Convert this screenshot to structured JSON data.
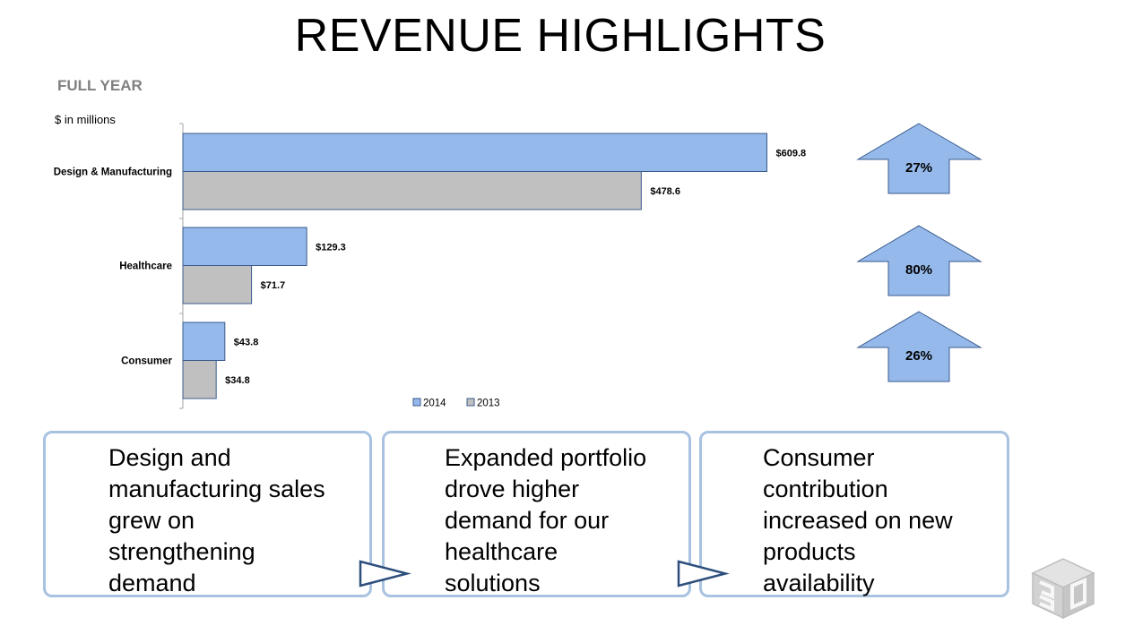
{
  "page": {
    "title": "REVENUE HIGHLIGHTS",
    "section_label": "FULL YEAR",
    "units_label": "$ in millions"
  },
  "chart_data": {
    "type": "bar",
    "orientation": "horizontal",
    "categories": [
      "Design & Manufacturing",
      "Healthcare",
      "Consumer"
    ],
    "series": [
      {
        "name": "2014",
        "values": [
          609.8,
          129.3,
          43.8
        ],
        "labels": [
          "$609.8",
          "$129.3",
          "$43.8"
        ],
        "color": "#95b9eb"
      },
      {
        "name": "2013",
        "values": [
          478.6,
          71.7,
          34.8
        ],
        "labels": [
          "$478.6",
          "$71.7",
          "$34.8"
        ],
        "color": "#c0c0c0"
      }
    ],
    "xlim": [
      0,
      710
    ],
    "grid": false,
    "legend": "bottom",
    "growth": [
      "27%",
      "80%",
      "26%"
    ],
    "growth_arrow_color": "#95b9eb"
  },
  "callouts": [
    {
      "lines": [
        "Design and",
        "manufacturing sales",
        "grew on",
        "strengthening",
        "demand"
      ]
    },
    {
      "lines": [
        "Expanded portfolio",
        "drove higher",
        "demand for our",
        "healthcare",
        "solutions"
      ]
    },
    {
      "lines": [
        "Consumer",
        "contribution",
        "increased on new",
        "products",
        "availability"
      ]
    }
  ],
  "colors": {
    "callout_border": "#a8c2e0",
    "connector_stroke": "#2e4f7c",
    "bar_stroke": "#3b5b8c"
  },
  "logo": {
    "icon": "3d-cube-logo"
  }
}
